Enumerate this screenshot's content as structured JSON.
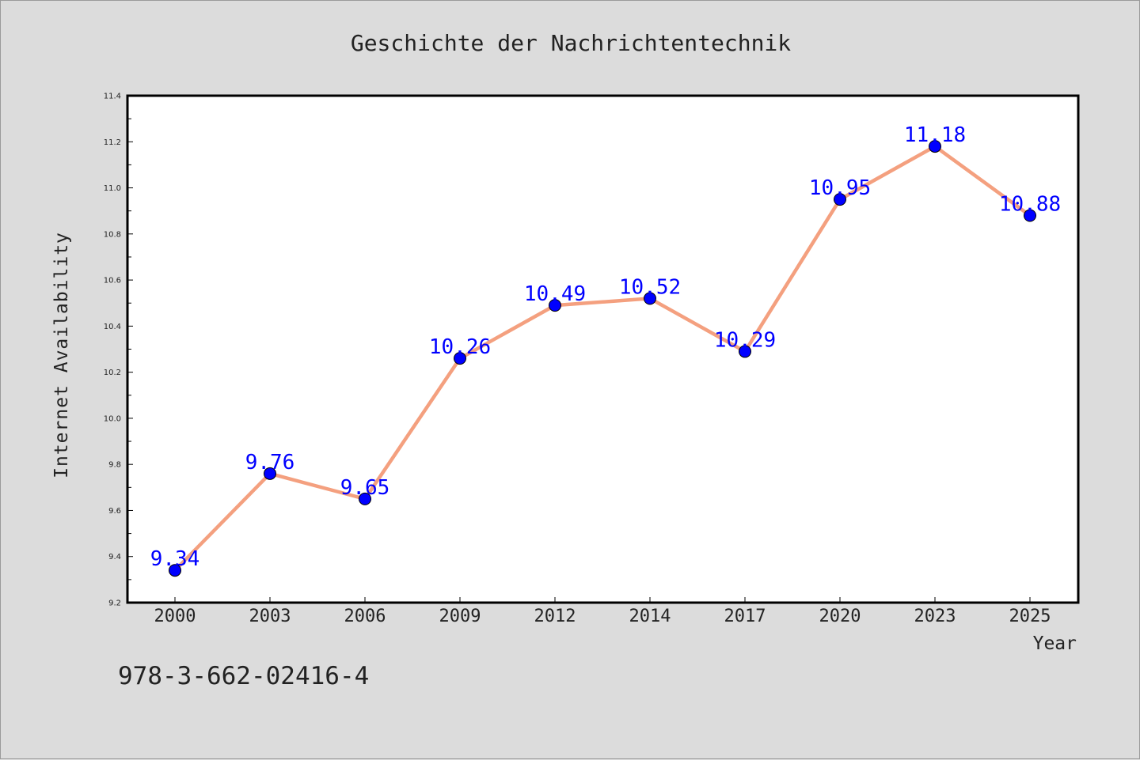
{
  "chart_data": {
    "type": "line",
    "title": "Geschichte der Nachrichtentechnik",
    "xlabel": "Year",
    "ylabel": "Internet Availability",
    "categories": [
      "2000",
      "2003",
      "2006",
      "2009",
      "2012",
      "2014",
      "2017",
      "2020",
      "2023",
      "2025"
    ],
    "series": [
      {
        "values": [
          9.34,
          9.76,
          9.65,
          10.26,
          10.49,
          10.52,
          10.29,
          10.95,
          11.18,
          10.88
        ]
      }
    ],
    "ylim": [
      9.2,
      11.4
    ],
    "yticks": [
      "9.2",
      "9.4",
      "9.6",
      "9.8",
      "10.0",
      "10.2",
      "10.4",
      "10.6",
      "10.8",
      "11.0",
      "11.2",
      "11.4"
    ],
    "data_labels": [
      "9.34",
      "9.76",
      "9.65",
      "10.26",
      "10.49",
      "10.52",
      "10.29",
      "10.95",
      "11.18",
      "10.88"
    ],
    "grid": false,
    "legend": "none",
    "colors": {
      "line": "#f4a07f",
      "marker": "#0000ff",
      "label": "#0000ff"
    }
  },
  "footer": {
    "isbn": "978-3-662-02416-4"
  }
}
